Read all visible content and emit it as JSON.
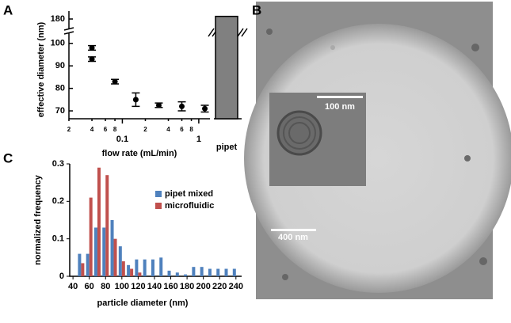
{
  "chart_data": [
    {
      "type": "errorbar",
      "panel_label": "A",
      "xlabel": "flow rate (mL/min)",
      "ylabel": "effective diameter (nm)",
      "x": [
        0.04,
        0.04,
        0.08,
        0.15,
        0.3,
        0.6,
        1.2
      ],
      "values": [
        98,
        93,
        83,
        75,
        72.5,
        72,
        71
      ],
      "errors": [
        1,
        1,
        1,
        3,
        1,
        2,
        1.5
      ],
      "color": "#000000",
      "log_x": true,
      "xlim": [
        0.02,
        1.4
      ],
      "xticks": [
        {
          "value": 0.02,
          "label": "2"
        },
        {
          "value": 0.04,
          "label": "4"
        },
        {
          "value": 0.06,
          "label": "6"
        },
        {
          "value": 0.08,
          "label": "8"
        },
        0.1,
        {
          "value": 0.2,
          "label": "2"
        },
        {
          "value": 0.4,
          "label": "4"
        },
        {
          "value": 0.6,
          "label": "6"
        },
        {
          "value": 0.8,
          "label": "8"
        },
        1
      ],
      "ylim": [
        66.5,
        104.5
      ],
      "yticks": [
        70,
        80,
        90,
        100
      ],
      "break_ylim": [
        177,
        183
      ],
      "break_yticks": [
        180
      ],
      "bar_category": "pipet",
      "bar_value": 181,
      "bar_color": "#808080"
    },
    {
      "type": "grouped-bar",
      "panel_label": "C",
      "xlabel": "particle diameter (nm)",
      "ylabel": "normalized frequency",
      "x": [
        50,
        60,
        70,
        80,
        90,
        100,
        110,
        120,
        130,
        140,
        150,
        160,
        170,
        180,
        190,
        200,
        210,
        220,
        230,
        240
      ],
      "series": [
        {
          "name": "pipet mixed",
          "color": "#4f81bd",
          "values": [
            0.06,
            0.06,
            0.13,
            0.13,
            0.15,
            0.08,
            0.03,
            0.045,
            0.045,
            0.045,
            0.05,
            0.015,
            0.01,
            0.005,
            0.025,
            0.025,
            0.02,
            0.02,
            0.02,
            0.02
          ]
        },
        {
          "name": "microfluidic",
          "color": "#c0504d",
          "values": [
            0.035,
            0.21,
            0.29,
            0.27,
            0.1,
            0.04,
            0.02,
            0.01,
            0,
            0,
            0,
            0,
            0,
            0,
            0,
            0,
            0,
            0,
            0,
            0
          ]
        }
      ],
      "xlim": [
        36,
        247
      ],
      "xticks": [
        40,
        60,
        80,
        100,
        120,
        140,
        160,
        180,
        200,
        220,
        240
      ],
      "ylim": [
        0,
        0.3
      ],
      "yticks": [
        0,
        0.1,
        0.2,
        0.3
      ],
      "legend": "upper right"
    }
  ],
  "image": {
    "panel_label": "B",
    "scale_bars": [
      {
        "label": "100 nm"
      },
      {
        "label": "400 nm"
      }
    ]
  }
}
